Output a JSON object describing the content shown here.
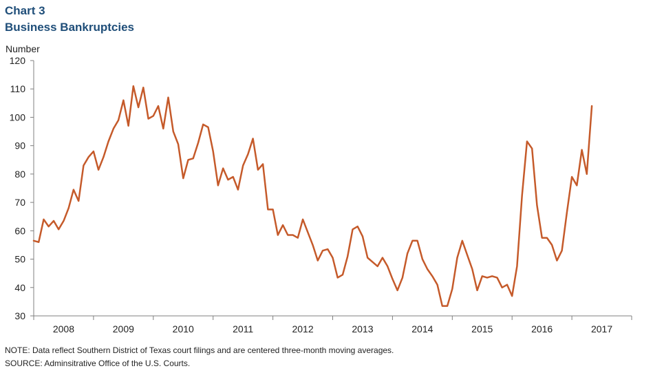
{
  "header": {
    "chart_number": "Chart 3",
    "title": "Business Bankruptcies"
  },
  "footer": {
    "note": "NOTE: Data reflect Southern District of Texas court filings and are centered three-month moving averages.",
    "source": "SOURCE: Adminsitrative Office of the U.S. Courts."
  },
  "colors": {
    "line": "#c55a2a",
    "title": "#1f4e79",
    "axis": "#7f7f7f"
  },
  "chart_data": {
    "type": "line",
    "title": "Business Bankruptcies",
    "ylabel": "Number",
    "xlabel": "",
    "ylim": [
      30,
      120
    ],
    "yticks": [
      30,
      40,
      50,
      60,
      70,
      80,
      90,
      100,
      110,
      120
    ],
    "xticks": [
      "2008",
      "2009",
      "2010",
      "2011",
      "2012",
      "2013",
      "2014",
      "2015",
      "2016",
      "2017"
    ],
    "grid": false,
    "legend": "none",
    "start": "2008-01",
    "frequency": "monthly",
    "series": [
      {
        "values": [
          56.5,
          56,
          64,
          61.5,
          63.5,
          60.5,
          63.5,
          68,
          74.5,
          70.5,
          83,
          86,
          88,
          81.5,
          86,
          91.5,
          96,
          99,
          106,
          97,
          111,
          103.5,
          110.5,
          99.5,
          100.5,
          104,
          96,
          107,
          95,
          90.5,
          78.5,
          85,
          85.5,
          91,
          97.5,
          96.5,
          88,
          76,
          82,
          78,
          79,
          74.5,
          83,
          87,
          92.5,
          81.5,
          83.5,
          67.5,
          67.5,
          58.5,
          62,
          58.5,
          58.5,
          57.5,
          64,
          59.5,
          55,
          49.5,
          53,
          53.5,
          50.5,
          43.5,
          44.5,
          51,
          60.5,
          61.5,
          58,
          50.5,
          49,
          47.5,
          50.5,
          47.5,
          43,
          39,
          43.5,
          52,
          56.5,
          56.5,
          50,
          46.5,
          44,
          41,
          33.5,
          33.5,
          39.5,
          50.5,
          56.5,
          51.5,
          46.5,
          39,
          44,
          43.5,
          44,
          43.5,
          40,
          41,
          37,
          47.5,
          72.5,
          91.5,
          89,
          69,
          57.5,
          57.5,
          55,
          49.5,
          53,
          66.5,
          79,
          76,
          88.5,
          80,
          104
        ]
      }
    ]
  }
}
